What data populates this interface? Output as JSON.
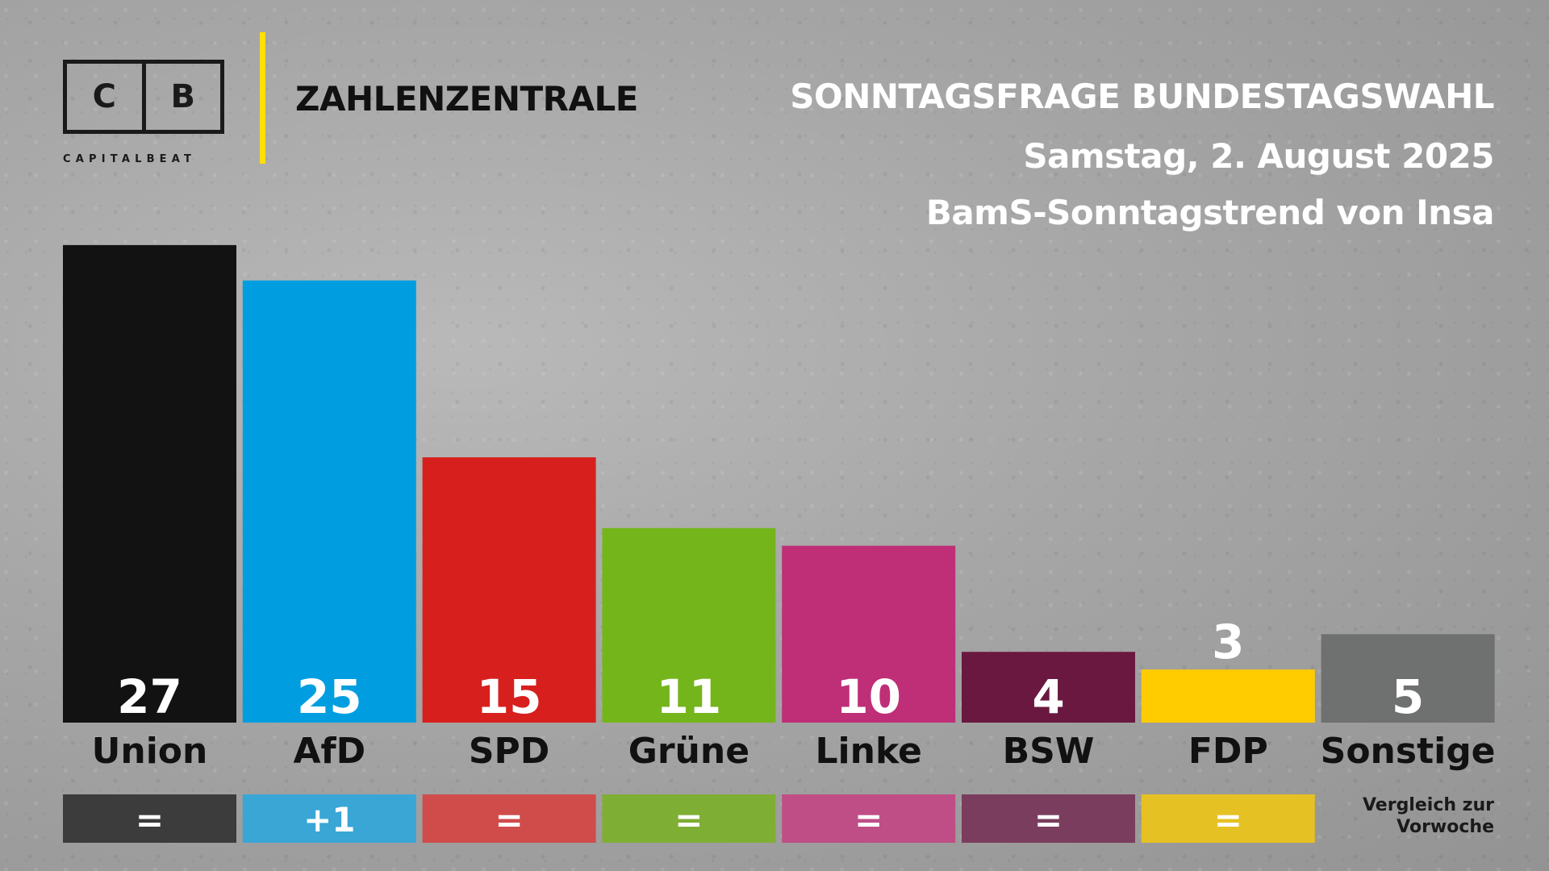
{
  "brand": {
    "logo_left": "C",
    "logo_right": "B",
    "logo_sub": "CAPITALBEAT",
    "section": "ZAHLENZENTRALE"
  },
  "header": {
    "title": "SONNTAGSFRAGE BUNDESTAGSWAHL",
    "date": "Samstag, 2. August 2025",
    "source": "BamS-Sonntagstrend von Insa"
  },
  "compare_note": [
    "Vergleich zur",
    "Vorwoche"
  ],
  "chart_data": {
    "type": "bar",
    "categories": [
      "Union",
      "AfD",
      "SPD",
      "Grüne",
      "Linke",
      "BSW",
      "FDP",
      "Sonstige"
    ],
    "values": [
      27,
      25,
      15,
      11,
      10,
      4,
      3,
      5
    ],
    "value_labels": [
      "27",
      "25",
      "15",
      "11",
      "10",
      "4",
      "3",
      "5"
    ],
    "change_vs_last_week": [
      "=",
      "+1",
      "=",
      "=",
      "=",
      "=",
      "=",
      null
    ],
    "colors": [
      "#121212",
      "#009ee0",
      "#d7201e",
      "#75b51c",
      "#be2f77",
      "#6a1840",
      "#ffcc00",
      "#6f7070"
    ],
    "change_colors": [
      "#3c3c3c",
      "#39a6d6",
      "#cf4c4a",
      "#7fae35",
      "#bf4e87",
      "#7b3d5e",
      "#e6c123",
      null
    ],
    "title": "SONNTAGSFRAGE BUNDESTAGSWAHL",
    "xlabel": "",
    "ylabel": "",
    "ylim": [
      0,
      30
    ],
    "grid": false,
    "legend": "none"
  }
}
